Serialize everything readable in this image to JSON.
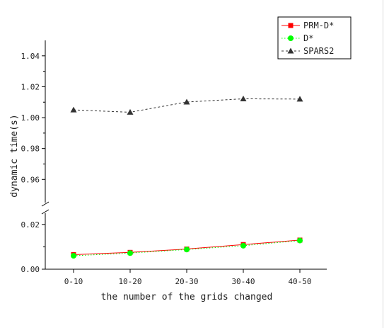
{
  "chart_data": {
    "type": "line",
    "title": "",
    "xlabel": "the number of the grids changed",
    "ylabel": "dynamic time(s)",
    "categories": [
      "0-10",
      "10-20",
      "20-30",
      "30-40",
      "40-50"
    ],
    "y_axis_break": true,
    "y_segments": [
      {
        "range": [
          0.0,
          0.025
        ],
        "ticks": [
          0.0,
          0.02
        ],
        "tick_labels": [
          "0.00",
          "0.02"
        ]
      },
      {
        "range": [
          0.945,
          1.05
        ],
        "ticks": [
          0.96,
          0.98,
          1.0,
          1.02,
          1.04
        ],
        "tick_labels": [
          "0.96",
          "0.98",
          "1.00",
          "1.02",
          "1.04"
        ]
      }
    ],
    "series": [
      {
        "name": "PRM-D*",
        "color": "#ff0000",
        "marker": "square",
        "line": "solid",
        "values": [
          0.0065,
          0.0075,
          0.009,
          0.011,
          0.013
        ]
      },
      {
        "name": "D*",
        "color": "#00ff00",
        "marker": "circle",
        "line": "dotted",
        "values": [
          0.006,
          0.0072,
          0.0088,
          0.0105,
          0.0128
        ]
      },
      {
        "name": "SPARS2",
        "color": "#333333",
        "marker": "triangle",
        "line": "dashed",
        "values": [
          1.005,
          1.0035,
          1.0101,
          1.0122,
          1.012
        ]
      }
    ],
    "legend": {
      "placement": "top-right",
      "boxed": true
    },
    "grid": false
  }
}
